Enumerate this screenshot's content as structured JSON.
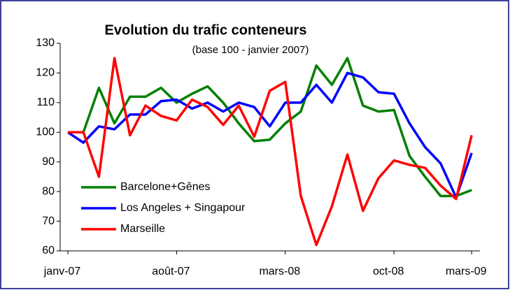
{
  "chart_data": {
    "type": "line",
    "title": "Evolution du trafic conteneurs",
    "subtitle": "(base 100 - janvier 2007)",
    "categories": [
      "janv-07",
      null,
      null,
      null,
      null,
      null,
      null,
      "août-07",
      null,
      null,
      null,
      null,
      null,
      null,
      "mars-08",
      null,
      null,
      null,
      null,
      null,
      null,
      "oct-08",
      null,
      null,
      null,
      null,
      "mars-09"
    ],
    "series": [
      {
        "name": "Barcelone+Gênes",
        "color": "#008000",
        "values": [
          100,
          100,
          115,
          103,
          112,
          112,
          115,
          110,
          113,
          115.5,
          110,
          103,
          97,
          97.5,
          103,
          107,
          122.5,
          116,
          125,
          109,
          107,
          107.5,
          92,
          85,
          78.5,
          78.5,
          80.5
        ]
      },
      {
        "name": "Los Angeles + Singapour",
        "color": "#0000ff",
        "values": [
          100,
          96.5,
          102,
          101,
          106,
          106,
          110.5,
          111,
          108,
          110,
          107,
          110,
          108.5,
          102,
          110,
          110,
          116,
          110,
          120,
          118.5,
          113.5,
          113,
          103,
          95,
          89.5,
          78,
          93
        ]
      },
      {
        "name": "Marseille",
        "color": "#ff0000",
        "values": [
          100,
          100,
          85,
          125,
          99,
          109,
          105.5,
          104,
          111,
          108.5,
          102.5,
          109,
          98.5,
          114,
          117,
          78.5,
          62,
          75,
          92.5,
          73.5,
          84.5,
          90.5,
          89,
          88,
          82,
          77.5,
          99
        ]
      }
    ],
    "ylim": [
      60,
      130
    ],
    "yticks": [
      60,
      70,
      80,
      90,
      100,
      110,
      120,
      130
    ],
    "legend": "lower left",
    "grid": false
  }
}
